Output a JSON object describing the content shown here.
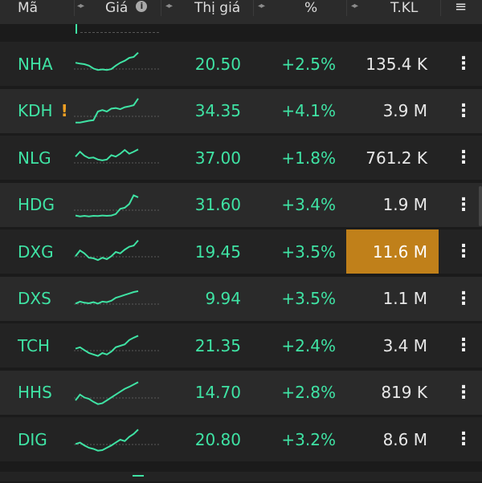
{
  "header": {
    "col_symbol": "Mã",
    "col_price": "Giá",
    "col_market_price": "Thị giá",
    "col_change_pct": "%",
    "col_volume": "T.KL"
  },
  "colors": {
    "up": "#3fe3a4",
    "highlight": "#c0801a",
    "warning": "#f0a023"
  },
  "rows": [
    {
      "symbol": "NHA",
      "warning": "",
      "price": "20.50",
      "change": "+2.5%",
      "volume": "135.4 K",
      "highlight": false,
      "spark": [
        0.55,
        0.52,
        0.5,
        0.45,
        0.35,
        0.3,
        0.32,
        0.3,
        0.33,
        0.45,
        0.55,
        0.62,
        0.72,
        0.75,
        0.9
      ]
    },
    {
      "symbol": "KDH",
      "warning": "!",
      "price": "34.35",
      "change": "+4.1%",
      "volume": "3.9 M",
      "highlight": false,
      "spark": [
        0.12,
        0.12,
        0.15,
        0.18,
        0.2,
        0.5,
        0.55,
        0.5,
        0.6,
        0.62,
        0.58,
        0.65,
        0.68,
        0.72,
        0.95
      ]
    },
    {
      "symbol": "NLG",
      "warning": "",
      "price": "37.00",
      "change": "+1.8%",
      "volume": "761.2 K",
      "highlight": false,
      "spark": [
        0.55,
        0.72,
        0.58,
        0.5,
        0.52,
        0.45,
        0.42,
        0.45,
        0.6,
        0.55,
        0.65,
        0.78,
        0.65,
        0.72,
        0.8
      ]
    },
    {
      "symbol": "HDG",
      "warning": "",
      "price": "31.60",
      "change": "+3.4%",
      "volume": "1.9 M",
      "highlight": false,
      "spark": [
        0.15,
        0.12,
        0.14,
        0.12,
        0.14,
        0.13,
        0.15,
        0.14,
        0.15,
        0.2,
        0.38,
        0.42,
        0.55,
        0.85,
        0.78
      ]
    },
    {
      "symbol": "DXG",
      "warning": "",
      "price": "19.45",
      "change": "+3.5%",
      "volume": "11.6 M",
      "highlight": true,
      "spark": [
        0.35,
        0.55,
        0.45,
        0.3,
        0.28,
        0.22,
        0.3,
        0.25,
        0.35,
        0.5,
        0.45,
        0.58,
        0.68,
        0.72,
        0.9
      ]
    },
    {
      "symbol": "DXS",
      "warning": "",
      "price": "9.94",
      "change": "+3.5%",
      "volume": "1.1 M",
      "highlight": false,
      "spark": [
        0.35,
        0.42,
        0.38,
        0.36,
        0.4,
        0.35,
        0.42,
        0.4,
        0.45,
        0.55,
        0.6,
        0.65,
        0.7,
        0.75,
        0.78
      ]
    },
    {
      "symbol": "TCH",
      "warning": "",
      "price": "21.35",
      "change": "+2.4%",
      "volume": "3.4 M",
      "highlight": false,
      "spark": [
        0.4,
        0.45,
        0.35,
        0.25,
        0.2,
        0.15,
        0.25,
        0.2,
        0.3,
        0.45,
        0.5,
        0.55,
        0.7,
        0.78,
        0.85
      ]
    },
    {
      "symbol": "HHS",
      "warning": "",
      "price": "14.70",
      "change": "+2.8%",
      "volume": "819 K",
      "highlight": false,
      "spark": [
        0.25,
        0.45,
        0.35,
        0.3,
        0.2,
        0.12,
        0.15,
        0.25,
        0.35,
        0.45,
        0.55,
        0.65,
        0.72,
        0.8,
        0.88
      ]
    },
    {
      "symbol": "DIG",
      "warning": "",
      "price": "20.80",
      "change": "+3.2%",
      "volume": "8.6 M",
      "highlight": false,
      "spark": [
        0.35,
        0.4,
        0.3,
        0.22,
        0.18,
        0.12,
        0.14,
        0.22,
        0.3,
        0.4,
        0.5,
        0.45,
        0.6,
        0.7,
        0.85
      ]
    }
  ]
}
